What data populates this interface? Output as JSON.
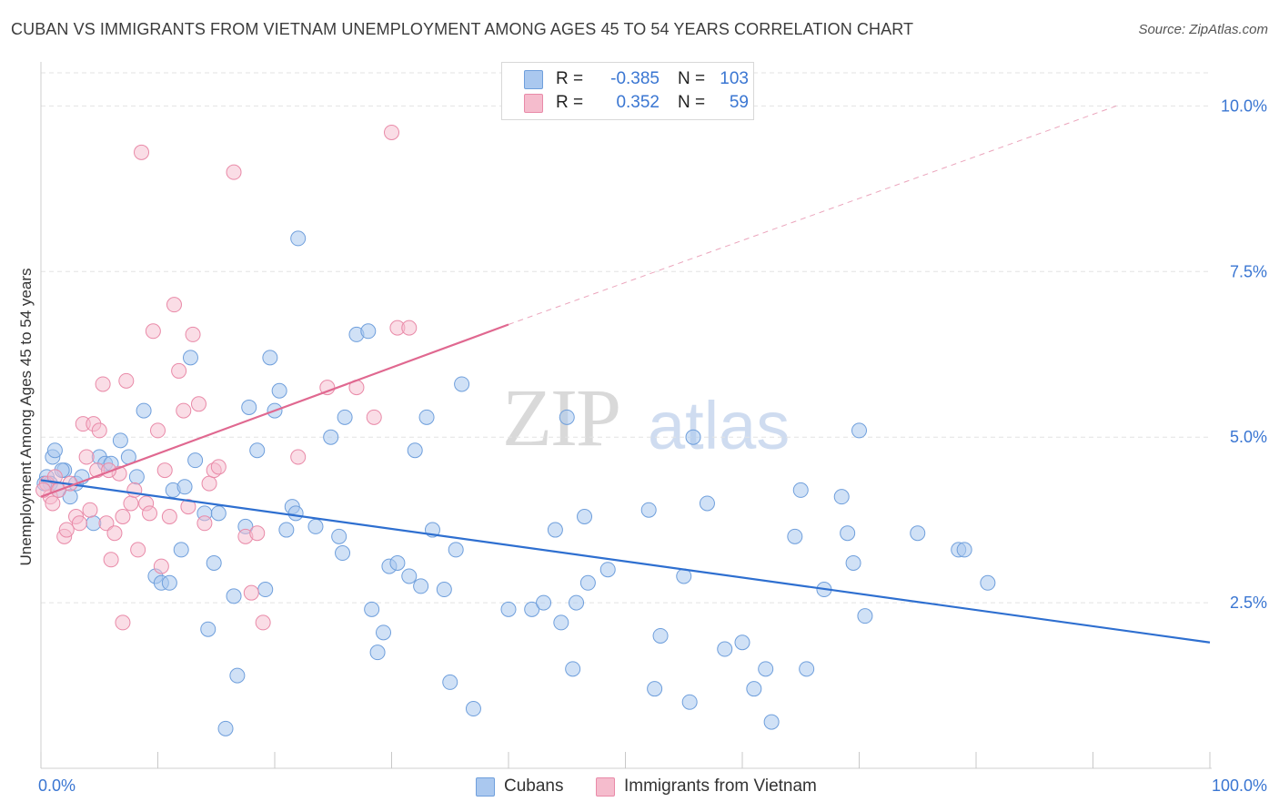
{
  "title": "CUBAN VS IMMIGRANTS FROM VIETNAM UNEMPLOYMENT AMONG AGES 45 TO 54 YEARS CORRELATION CHART",
  "source": "Source: ZipAtlas.com",
  "watermark": {
    "zip": "ZIP",
    "atlas": "atlas"
  },
  "legend": {
    "rows": [
      {
        "r_label": "R =",
        "r_value": "-0.385",
        "n_label": "N =",
        "n_value": "103"
      },
      {
        "r_label": "R =",
        "r_value": "0.352",
        "n_label": "N =",
        "n_value": "59"
      }
    ]
  },
  "colors": {
    "blue_fill": "#aac8ef",
    "blue_stroke": "#6f9fdc",
    "blue_line": "#2e6fd0",
    "pink_fill": "#f5bccd",
    "pink_stroke": "#e98aa8",
    "pink_line": "#e06890",
    "grid": "#e3e3e3",
    "tick_label": "#3a76d2"
  },
  "chart_data": {
    "type": "scatter",
    "title": "CUBAN VS IMMIGRANTS FROM VIETNAM UNEMPLOYMENT AMONG AGES 45 TO 54 YEARS CORRELATION CHART",
    "xlabel": "",
    "ylabel": "Unemployment Among Ages 45 to 54 years",
    "xlim": [
      0,
      100
    ],
    "ylim": [
      0,
      10.5
    ],
    "x_tick_labels": [
      "0.0%",
      "100.0%"
    ],
    "y_ticks": [
      2.5,
      5.0,
      7.5,
      10.0
    ],
    "y_tick_labels": [
      "2.5%",
      "5.0%",
      "7.5%",
      "10.0%"
    ],
    "grid": true,
    "legend_position": "bottom",
    "series": [
      {
        "name": "Cubans",
        "trend": {
          "x": [
            0,
            100
          ],
          "y": [
            4.35,
            1.9
          ]
        },
        "points": [
          [
            0.5,
            4.4
          ],
          [
            0.8,
            4.3
          ],
          [
            1.0,
            4.7
          ],
          [
            1.2,
            4.8
          ],
          [
            1.5,
            4.2
          ],
          [
            2.0,
            4.5
          ],
          [
            2.5,
            4.1
          ],
          [
            3.0,
            4.3
          ],
          [
            3.5,
            4.4
          ],
          [
            4.5,
            3.7
          ],
          [
            5.0,
            4.7
          ],
          [
            5.5,
            4.6
          ],
          [
            6.0,
            4.6
          ],
          [
            6.8,
            4.95
          ],
          [
            7.5,
            4.7
          ],
          [
            8.2,
            4.4
          ],
          [
            8.8,
            5.4
          ],
          [
            9.8,
            2.9
          ],
          [
            10.3,
            2.8
          ],
          [
            11.0,
            2.8
          ],
          [
            11.3,
            4.2
          ],
          [
            12.0,
            3.3
          ],
          [
            12.3,
            4.25
          ],
          [
            12.8,
            6.2
          ],
          [
            13.2,
            4.65
          ],
          [
            14.0,
            3.85
          ],
          [
            14.3,
            2.1
          ],
          [
            14.8,
            3.1
          ],
          [
            15.2,
            3.85
          ],
          [
            16.5,
            2.6
          ],
          [
            16.8,
            1.4
          ],
          [
            15.8,
            0.6
          ],
          [
            17.5,
            3.65
          ],
          [
            17.8,
            5.45
          ],
          [
            18.5,
            4.8
          ],
          [
            19.2,
            2.7
          ],
          [
            19.6,
            6.2
          ],
          [
            20.0,
            5.4
          ],
          [
            20.4,
            5.7
          ],
          [
            21.0,
            3.6
          ],
          [
            21.5,
            3.95
          ],
          [
            21.8,
            3.85
          ],
          [
            22.0,
            8.0
          ],
          [
            23.5,
            3.65
          ],
          [
            24.8,
            5.0
          ],
          [
            25.5,
            3.5
          ],
          [
            25.8,
            3.25
          ],
          [
            26.0,
            5.3
          ],
          [
            27.0,
            6.55
          ],
          [
            28.0,
            6.6
          ],
          [
            28.3,
            2.4
          ],
          [
            28.8,
            1.75
          ],
          [
            29.3,
            2.05
          ],
          [
            29.8,
            3.05
          ],
          [
            30.5,
            3.1
          ],
          [
            31.5,
            2.9
          ],
          [
            32.0,
            4.8
          ],
          [
            32.5,
            2.75
          ],
          [
            33.0,
            5.3
          ],
          [
            33.5,
            3.6
          ],
          [
            34.5,
            2.7
          ],
          [
            35.0,
            1.3
          ],
          [
            35.5,
            3.3
          ],
          [
            36.0,
            5.8
          ],
          [
            37.0,
            0.9
          ],
          [
            40.0,
            2.4
          ],
          [
            42.0,
            2.4
          ],
          [
            43.0,
            2.5
          ],
          [
            44.0,
            3.6
          ],
          [
            44.5,
            2.2
          ],
          [
            45.0,
            5.3
          ],
          [
            45.5,
            1.5
          ],
          [
            45.8,
            2.5
          ],
          [
            46.5,
            3.8
          ],
          [
            46.8,
            2.8
          ],
          [
            48.5,
            3.0
          ],
          [
            52.0,
            3.9
          ],
          [
            52.5,
            1.2
          ],
          [
            53.0,
            2.0
          ],
          [
            55.0,
            2.9
          ],
          [
            55.5,
            1.0
          ],
          [
            55.8,
            5.0
          ],
          [
            57.0,
            4.0
          ],
          [
            58.5,
            1.8
          ],
          [
            60.0,
            1.9
          ],
          [
            61.0,
            1.2
          ],
          [
            62.0,
            1.5
          ],
          [
            62.5,
            0.7
          ],
          [
            64.5,
            3.5
          ],
          [
            65.0,
            4.2
          ],
          [
            65.5,
            1.5
          ],
          [
            67.0,
            2.7
          ],
          [
            68.5,
            4.1
          ],
          [
            69.0,
            3.55
          ],
          [
            69.5,
            3.1
          ],
          [
            70.0,
            5.1
          ],
          [
            70.5,
            2.3
          ],
          [
            75.0,
            3.55
          ],
          [
            78.5,
            3.3
          ],
          [
            79.0,
            3.3
          ],
          [
            81.0,
            2.8
          ],
          [
            0.3,
            4.3
          ],
          [
            1.8,
            4.5
          ]
        ]
      },
      {
        "name": "Immigrants from Vietnam",
        "trend": {
          "x": [
            0,
            40
          ],
          "y": [
            4.1,
            6.7
          ]
        },
        "trend_dashed": {
          "x": [
            40,
            92
          ],
          "y": [
            6.7,
            10.0
          ]
        },
        "points": [
          [
            0.5,
            4.3
          ],
          [
            0.8,
            4.1
          ],
          [
            1.2,
            4.4
          ],
          [
            1.5,
            4.2
          ],
          [
            2.0,
            3.5
          ],
          [
            2.5,
            4.3
          ],
          [
            3.0,
            3.8
          ],
          [
            3.3,
            3.7
          ],
          [
            3.6,
            5.2
          ],
          [
            3.9,
            4.7
          ],
          [
            4.2,
            3.9
          ],
          [
            4.5,
            5.2
          ],
          [
            4.8,
            4.5
          ],
          [
            5.0,
            5.1
          ],
          [
            5.3,
            5.8
          ],
          [
            5.6,
            3.7
          ],
          [
            6.0,
            3.15
          ],
          [
            6.3,
            3.55
          ],
          [
            6.7,
            4.45
          ],
          [
            7.0,
            2.2
          ],
          [
            7.3,
            5.85
          ],
          [
            7.7,
            4.0
          ],
          [
            8.0,
            4.2
          ],
          [
            8.3,
            3.3
          ],
          [
            8.6,
            9.3
          ],
          [
            9.0,
            4.0
          ],
          [
            9.3,
            3.85
          ],
          [
            9.6,
            6.6
          ],
          [
            10.0,
            5.1
          ],
          [
            10.3,
            3.05
          ],
          [
            10.6,
            4.5
          ],
          [
            11.0,
            3.8
          ],
          [
            11.4,
            7.0
          ],
          [
            11.8,
            6.0
          ],
          [
            12.2,
            5.4
          ],
          [
            12.6,
            3.95
          ],
          [
            13.0,
            6.55
          ],
          [
            13.5,
            5.5
          ],
          [
            14.0,
            3.7
          ],
          [
            14.4,
            4.3
          ],
          [
            14.8,
            4.5
          ],
          [
            15.2,
            4.55
          ],
          [
            16.5,
            9.0
          ],
          [
            17.5,
            3.5
          ],
          [
            18.0,
            2.65
          ],
          [
            18.5,
            3.55
          ],
          [
            19.0,
            2.2
          ],
          [
            22.0,
            4.7
          ],
          [
            24.5,
            5.75
          ],
          [
            27.0,
            5.75
          ],
          [
            28.5,
            5.3
          ],
          [
            30.0,
            9.6
          ],
          [
            30.5,
            6.65
          ],
          [
            31.5,
            6.65
          ],
          [
            0.2,
            4.2
          ],
          [
            1.0,
            4.0
          ],
          [
            2.2,
            3.6
          ],
          [
            5.8,
            4.5
          ],
          [
            7.0,
            3.8
          ]
        ]
      }
    ]
  }
}
